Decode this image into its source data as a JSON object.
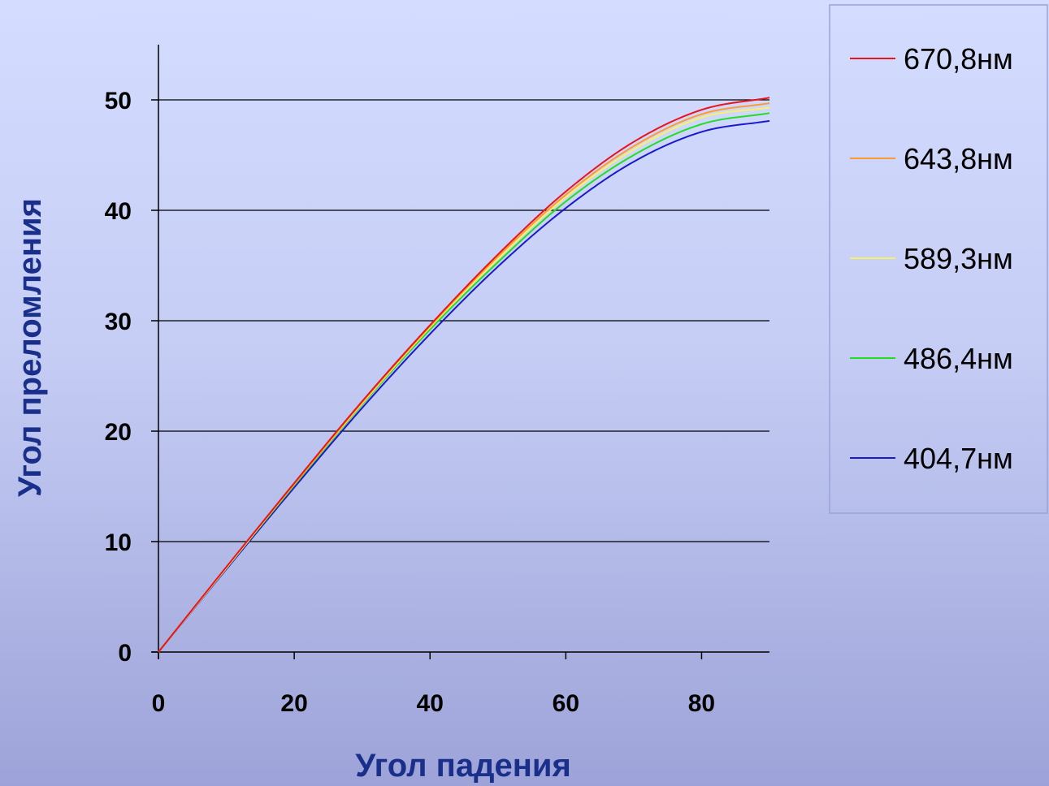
{
  "chart_data": {
    "type": "line",
    "title": "",
    "xlabel": "Угол падения",
    "ylabel": "Угол преломления",
    "xlim": [
      0,
      90
    ],
    "ylim": [
      0,
      55
    ],
    "x_ticks": [
      0,
      20,
      40,
      60,
      80
    ],
    "y_ticks": [
      0,
      10,
      20,
      30,
      40,
      50
    ],
    "x_tick_labels": [
      "0",
      "20",
      "40",
      "60",
      "80"
    ],
    "y_tick_labels": [
      "0",
      "10",
      "20",
      "30",
      "40",
      "50"
    ],
    "grid": "horizontal",
    "legend_position": "right",
    "x": [
      0,
      10,
      20,
      30,
      40,
      50,
      60,
      70,
      80,
      90
    ],
    "series": [
      {
        "name": "670,8нм",
        "color": "#e8141e",
        "values": [
          0,
          7.7,
          15.3,
          22.7,
          29.6,
          36.0,
          41.7,
          46.2,
          49.1,
          50.2
        ]
      },
      {
        "name": "643,8нм",
        "color": "#ff9a33",
        "values": [
          0,
          7.7,
          15.2,
          22.6,
          29.5,
          35.8,
          41.4,
          45.8,
          48.7,
          49.7
        ]
      },
      {
        "name": "589,3нм",
        "color": "#f5f26a",
        "values": [
          0,
          7.6,
          15.2,
          22.5,
          29.4,
          35.6,
          41.2,
          45.5,
          48.4,
          49.3
        ]
      },
      {
        "name": "486,4нм",
        "color": "#22dd22",
        "values": [
          0,
          7.6,
          15.1,
          22.4,
          29.2,
          35.3,
          40.8,
          45.0,
          47.8,
          48.8
        ]
      },
      {
        "name": "404,7нм",
        "color": "#1a1acc",
        "values": [
          0,
          7.5,
          14.9,
          22.1,
          28.8,
          34.9,
          40.2,
          44.4,
          47.1,
          48.1
        ]
      }
    ]
  }
}
